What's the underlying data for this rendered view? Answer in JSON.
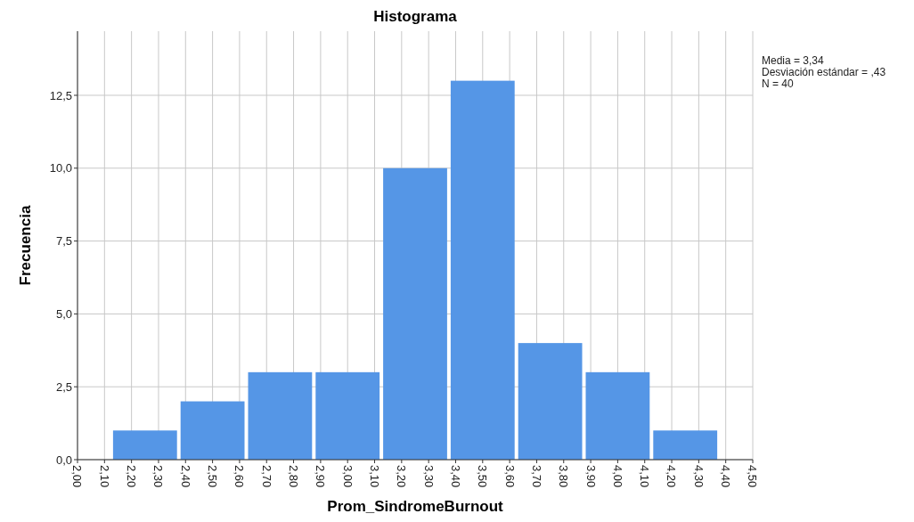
{
  "chart_data": {
    "type": "histogram",
    "title": "Histograma",
    "xlabel": "Prom_SindromeBurnout",
    "ylabel": "Frecuencia",
    "bins": [
      2.125,
      2.375,
      2.625,
      2.875,
      3.125,
      3.375,
      3.625,
      3.875,
      4.125,
      4.375
    ],
    "values": [
      1,
      2,
      3,
      3,
      10,
      13,
      4,
      3,
      1
    ],
    "color": "#5596e6",
    "xlim": [
      2,
      4.5
    ],
    "xticks": [
      {
        "value": 2,
        "label": "2,00"
      },
      {
        "value": 2.1,
        "label": "2,10"
      },
      {
        "value": 2.2,
        "label": "2,20"
      },
      {
        "value": 2.3,
        "label": "2,30"
      },
      {
        "value": 2.4,
        "label": "2,40"
      },
      {
        "value": 2.5,
        "label": "2,50"
      },
      {
        "value": 2.6,
        "label": "2,60"
      },
      {
        "value": 2.7,
        "label": "2,70"
      },
      {
        "value": 2.8,
        "label": "2,80"
      },
      {
        "value": 2.9,
        "label": "2,90"
      },
      {
        "value": 3,
        "label": "3,00"
      },
      {
        "value": 3.1,
        "label": "3,10"
      },
      {
        "value": 3.2,
        "label": "3,20"
      },
      {
        "value": 3.3,
        "label": "3,30"
      },
      {
        "value": 3.4,
        "label": "3,40"
      },
      {
        "value": 3.5,
        "label": "3,50"
      },
      {
        "value": 3.6,
        "label": "3,60"
      },
      {
        "value": 3.7,
        "label": "3,70"
      },
      {
        "value": 3.8,
        "label": "3,80"
      },
      {
        "value": 3.9,
        "label": "3,90"
      },
      {
        "value": 4,
        "label": "4,00"
      },
      {
        "value": 4.1,
        "label": "4,10"
      },
      {
        "value": 4.2,
        "label": "4,20"
      },
      {
        "value": 4.3,
        "label": "4,30"
      },
      {
        "value": 4.4,
        "label": "4,40"
      },
      {
        "value": 4.5,
        "label": "4,50"
      }
    ],
    "ylim": [
      0,
      14.7
    ],
    "yticks": [
      {
        "value": 0,
        "label": "0,0"
      },
      {
        "value": 2.5,
        "label": "2,5"
      },
      {
        "value": 5,
        "label": "5,0"
      },
      {
        "value": 7.5,
        "label": "7,5"
      },
      {
        "value": 10,
        "label": "10,0"
      },
      {
        "value": 12.5,
        "label": "12,5"
      }
    ],
    "grid": true,
    "annotations": [
      "Media = 3,34",
      "Desviación estándar = ,43",
      "N = 40"
    ]
  }
}
